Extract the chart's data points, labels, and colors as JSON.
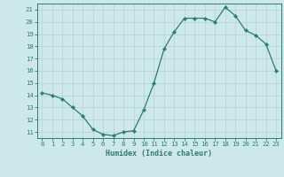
{
  "x": [
    0,
    1,
    2,
    3,
    4,
    5,
    6,
    7,
    8,
    9,
    10,
    11,
    12,
    13,
    14,
    15,
    16,
    17,
    18,
    19,
    20,
    21,
    22,
    23
  ],
  "y": [
    14.2,
    14.0,
    13.7,
    13.0,
    12.3,
    11.2,
    10.8,
    10.7,
    11.0,
    11.1,
    12.8,
    15.0,
    17.8,
    19.2,
    20.3,
    20.3,
    20.3,
    20.0,
    21.2,
    20.5,
    19.3,
    18.9,
    18.2,
    16.0
  ],
  "line_color": "#2e7d6e",
  "marker": "D",
  "marker_size": 2.2,
  "bg_color": "#cce8e8",
  "grid_color": "#b8d4d4",
  "axis_color": "#2e7d6e",
  "tick_color": "#2e7d6e",
  "xlabel": "Humidex (Indice chaleur)",
  "ylim": [
    10.5,
    21.5
  ],
  "xlim": [
    -0.5,
    23.5
  ],
  "yticks": [
    11,
    12,
    13,
    14,
    15,
    16,
    17,
    18,
    19,
    20,
    21
  ],
  "xticks": [
    0,
    1,
    2,
    3,
    4,
    5,
    6,
    7,
    8,
    9,
    10,
    11,
    12,
    13,
    14,
    15,
    16,
    17,
    18,
    19,
    20,
    21,
    22,
    23
  ],
  "font_family": "monospace",
  "xlabel_fontsize": 6.0,
  "tick_fontsize": 5.2,
  "linewidth": 0.9
}
